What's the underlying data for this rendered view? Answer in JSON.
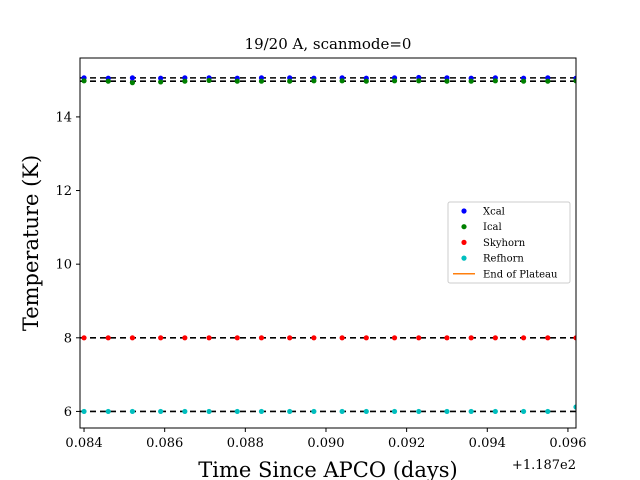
{
  "chart_data": {
    "type": "scatter",
    "title": "19/20 A, scanmode=0",
    "xlabel": "Time Since APCO (days)",
    "ylabel": "Temperature (K)",
    "x_offset_label": "+1.187e2",
    "xlim": [
      0.0839,
      0.0962
    ],
    "ylim": [
      5.55,
      15.6
    ],
    "x_ticks": [
      0.084,
      0.086,
      0.088,
      0.09,
      0.092,
      0.094,
      0.096
    ],
    "x_tick_labels": [
      "0.084",
      "0.086",
      "0.088",
      "0.090",
      "0.092",
      "0.094",
      "0.096"
    ],
    "y_ticks": [
      6,
      8,
      10,
      12,
      14
    ],
    "y_tick_labels": [
      "6",
      "8",
      "10",
      "12",
      "14"
    ],
    "x": [
      0.084,
      0.0846,
      0.0852,
      0.0859,
      0.0865,
      0.0871,
      0.0878,
      0.0884,
      0.0891,
      0.0897,
      0.0904,
      0.091,
      0.0917,
      0.0923,
      0.093,
      0.0936,
      0.0942,
      0.0949,
      0.0955,
      0.0962
    ],
    "series": [
      {
        "name": "Xcal",
        "color": "#0000ff",
        "values": [
          15.06,
          15.05,
          15.06,
          15.05,
          15.06,
          15.06,
          15.05,
          15.06,
          15.06,
          15.05,
          15.06,
          15.05,
          15.06,
          15.07,
          15.06,
          15.05,
          15.06,
          15.05,
          15.06,
          15.05
        ]
      },
      {
        "name": "Ical",
        "color": "#008000",
        "values": [
          14.98,
          14.97,
          14.93,
          14.95,
          14.97,
          14.99,
          14.97,
          14.97,
          14.97,
          14.98,
          14.98,
          14.97,
          14.98,
          14.98,
          14.97,
          14.97,
          14.98,
          14.97,
          14.97,
          14.98
        ]
      },
      {
        "name": "Skyhorn",
        "color": "#ff0000",
        "values": [
          8.0,
          8.0,
          8.0,
          8.0,
          8.0,
          8.0,
          8.0,
          8.0,
          8.0,
          8.0,
          8.0,
          8.0,
          8.0,
          8.0,
          8.0,
          8.0,
          8.0,
          8.0,
          8.0,
          8.0
        ]
      },
      {
        "name": "Refhorn",
        "color": "#00bfbf",
        "values": [
          6.0,
          6.0,
          6.0,
          6.0,
          6.0,
          6.0,
          6.0,
          6.0,
          6.0,
          6.0,
          6.0,
          6.0,
          6.0,
          6.0,
          6.0,
          6.0,
          6.0,
          6.0,
          6.0,
          6.12
        ]
      }
    ],
    "end_of_plateau": {
      "name": "End of Plateau",
      "color": "#ff7f0e"
    },
    "reference_lines": [
      15.06,
      14.97,
      8.0,
      6.0
    ],
    "grid": false,
    "legend_position": "center-right"
  }
}
